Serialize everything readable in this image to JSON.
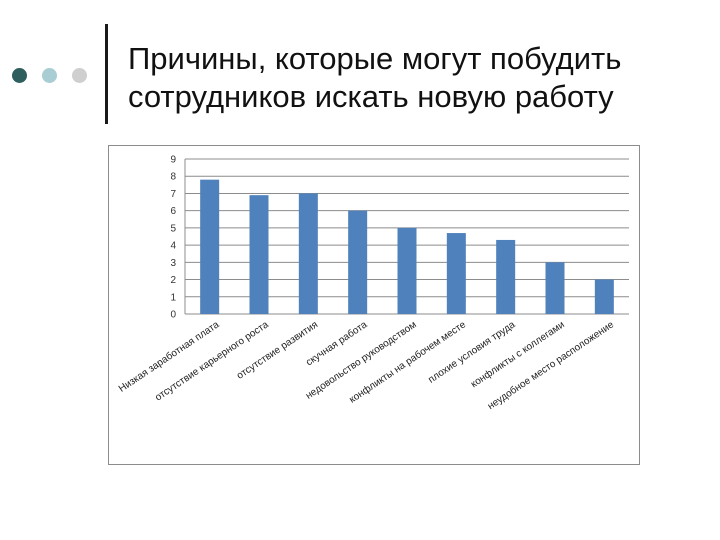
{
  "slide": {
    "title": "Причины, которые могут побудить сотрудников искать новую работу",
    "bullets": [
      {
        "name": "bullet-dot-1",
        "color": "#2e5e5e"
      },
      {
        "name": "bullet-dot-2",
        "color": "#a8cdd3"
      },
      {
        "name": "bullet-dot-3",
        "color": "#cfcfcf"
      }
    ]
  },
  "chart_data": {
    "type": "bar",
    "title": "",
    "xlabel": "",
    "ylabel": "",
    "ylim": [
      0,
      9
    ],
    "yticks": [
      0,
      1,
      2,
      3,
      4,
      5,
      6,
      7,
      8,
      9
    ],
    "grid": true,
    "legend": "none",
    "bar_color": "#4f81bd",
    "grid_color": "#8c8c8c",
    "categories": [
      "Низкая заработная плата",
      "отсутствие карьерного роста",
      "отсутствие развития",
      "скучная работа",
      "недовольство руководством",
      "конфликты на рабочем месте",
      "плохие условия труда",
      "конфликты с коллегами",
      "неудобное место расположение"
    ],
    "values": [
      7.8,
      6.9,
      7.0,
      6.0,
      5.0,
      4.7,
      4.3,
      3.0,
      2.0
    ]
  }
}
